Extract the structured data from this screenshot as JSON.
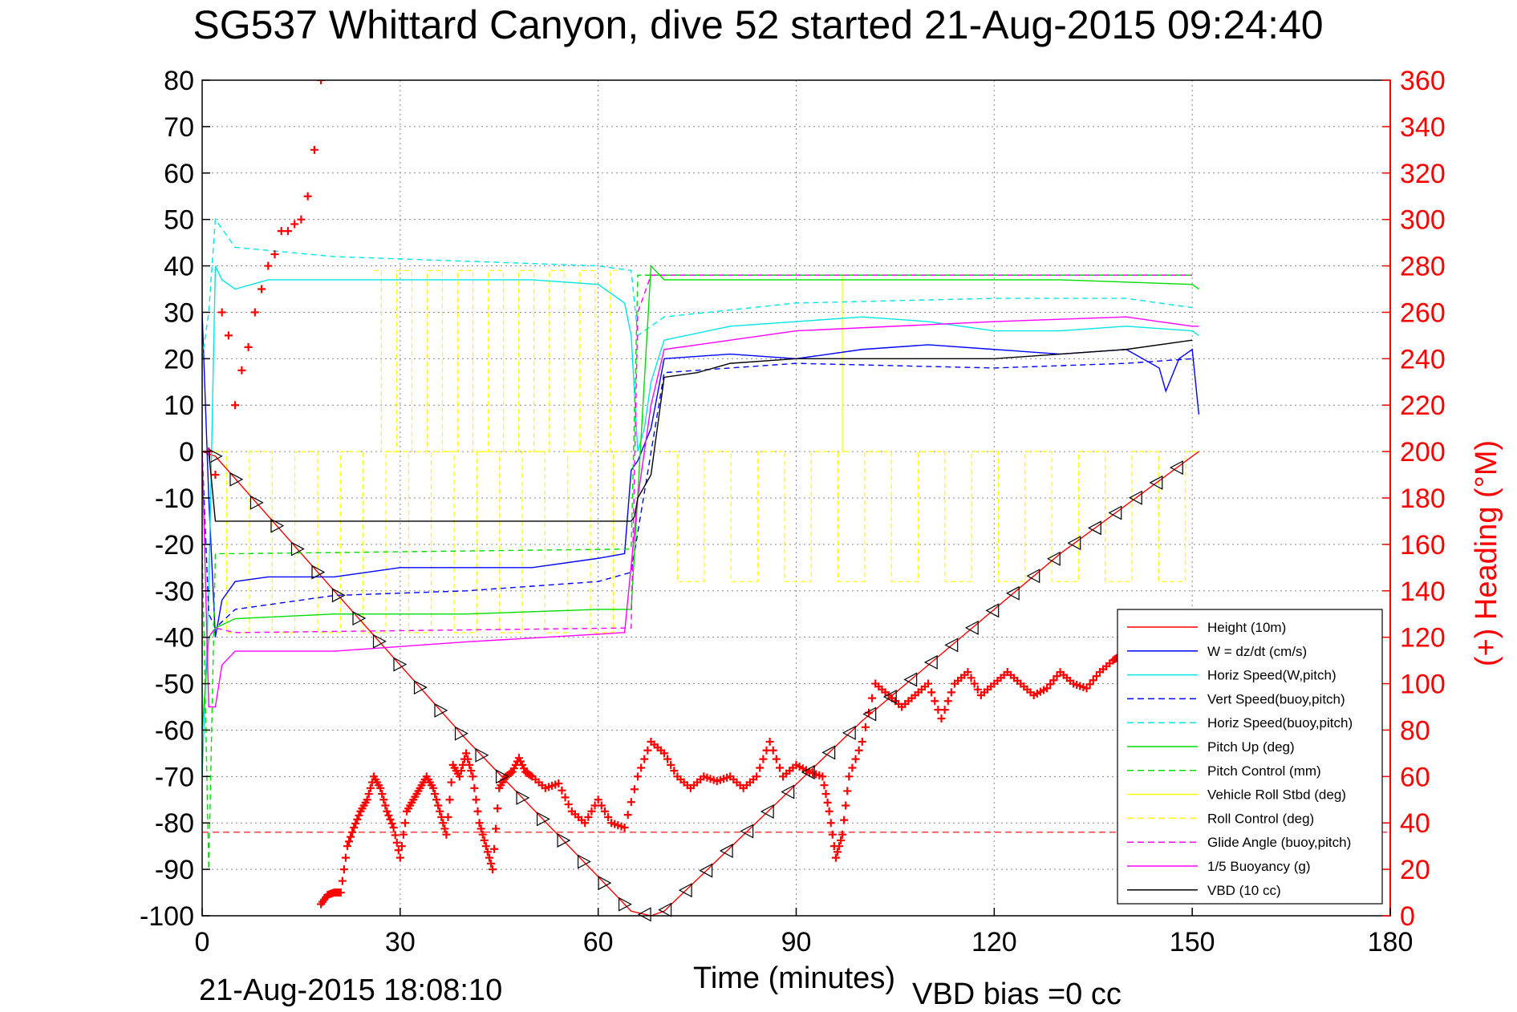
{
  "chart_data": {
    "type": "line",
    "title": "SG537 Whittard Canyon, dive 52 started 21-Aug-2015 09:24:40",
    "xlabel": "Time (minutes)",
    "ylabel_right": "(+) Heading (°M)",
    "footer_left": "21-Aug-2015 18:08:10",
    "footer_right": "VBD bias =0 cc",
    "xlim": [
      0,
      180
    ],
    "ylim_left": [
      -100,
      80
    ],
    "ylim_right": [
      0,
      360
    ],
    "x_ticks": [
      "0",
      "30",
      "60",
      "90",
      "120",
      "150",
      "180"
    ],
    "y_ticks_left": [
      "80",
      "70",
      "60",
      "50",
      "40",
      "30",
      "20",
      "10",
      "0",
      "-10",
      "-20",
      "-30",
      "-40",
      "-50",
      "-60",
      "-70",
      "-80",
      "-90",
      "-100"
    ],
    "y_ticks_right": [
      "360",
      "340",
      "320",
      "300",
      "280",
      "260",
      "240",
      "220",
      "200",
      "180",
      "160",
      "140",
      "120",
      "100",
      "80",
      "60",
      "40",
      "20",
      "0"
    ],
    "grid": true,
    "legend_position": "lower-right",
    "series": [
      {
        "name": "Height (10m)",
        "color": "#ff0000",
        "style": "solid",
        "x": [
          0,
          2,
          20,
          40,
          65,
          68,
          70,
          100,
          130,
          151
        ],
        "y": [
          0,
          -1,
          -30,
          -62,
          -99,
          -100,
          -99,
          -58,
          -22,
          0
        ]
      },
      {
        "name": "W = dz/dt (cm/s)",
        "color": "#0000ff",
        "style": "solid",
        "x": [
          0,
          1,
          2,
          3,
          5,
          10,
          20,
          30,
          40,
          50,
          60,
          64,
          65,
          66,
          68,
          70,
          80,
          90,
          100,
          110,
          120,
          130,
          140,
          145,
          146,
          148,
          150,
          151
        ],
        "y": [
          30,
          -10,
          -40,
          -32,
          -28,
          -27,
          -27,
          -25,
          -25,
          -25,
          -23,
          -22,
          -4,
          -2,
          5,
          20,
          21,
          20,
          22,
          23,
          22,
          21,
          22,
          18,
          13,
          20,
          22,
          8
        ]
      },
      {
        "name": "Horiz Speed(W,pitch)",
        "color": "#00e5e5",
        "style": "solid",
        "x": [
          0,
          1,
          2,
          3,
          5,
          10,
          20,
          30,
          40,
          50,
          60,
          64,
          65,
          66,
          67,
          68,
          70,
          80,
          90,
          100,
          110,
          120,
          130,
          140,
          150,
          151
        ],
        "y": [
          -70,
          -30,
          40,
          37,
          35,
          37,
          37,
          37,
          37,
          37,
          36,
          32,
          25,
          0,
          5,
          15,
          24,
          27,
          28,
          29,
          28,
          26,
          26,
          27,
          26,
          25
        ]
      },
      {
        "name": "Vert Speed(buoy,pitch)",
        "color": "#0000ff",
        "style": "dashed",
        "x": [
          0,
          1,
          2,
          5,
          20,
          40,
          60,
          65,
          70,
          90,
          120,
          140,
          150
        ],
        "y": [
          0,
          -35,
          -38,
          -34,
          -31,
          -30,
          -28,
          -26,
          17,
          19,
          18,
          19,
          20
        ]
      },
      {
        "name": "Horiz Speed(buoy,pitch)",
        "color": "#00e5e5",
        "style": "dashed",
        "x": [
          0,
          1,
          2,
          5,
          20,
          40,
          60,
          65,
          66,
          70,
          90,
          120,
          140,
          150
        ],
        "y": [
          20,
          30,
          50,
          44,
          42,
          41,
          40,
          39,
          25,
          29,
          32,
          33,
          33,
          31
        ]
      },
      {
        "name": "Pitch Up (deg)",
        "color": "#00dd00",
        "style": "solid",
        "x": [
          0,
          1,
          2,
          5,
          20,
          40,
          60,
          65,
          68,
          70,
          100,
          130,
          150,
          151
        ],
        "y": [
          -60,
          -40,
          -38,
          -36,
          -35,
          -35,
          -34,
          -34,
          40,
          37,
          37,
          37,
          36,
          35
        ]
      },
      {
        "name": "Pitch Control (mm)",
        "color": "#00dd00",
        "style": "dashed",
        "x": [
          0,
          1,
          2,
          5,
          65,
          66,
          70,
          150
        ],
        "y": [
          -20,
          -90,
          -22,
          -22,
          -21,
          38,
          38,
          38
        ]
      },
      {
        "name": "Vehicle Roll Stbd (deg)",
        "color": "#ffff00",
        "style": "solid",
        "x": [
          0,
          151
        ],
        "y": [
          0,
          0
        ]
      },
      {
        "name": "Roll Control (deg)",
        "color": "#ffff00",
        "style": "dashed",
        "x": [
          0,
          151
        ],
        "y": [
          0,
          0
        ]
      },
      {
        "name": "Glide Angle (buoy,pitch)",
        "color": "#ff00ff",
        "style": "dashed",
        "x": [
          0,
          1,
          2,
          5,
          65,
          66,
          68,
          70,
          150
        ],
        "y": [
          -40,
          -40,
          -38,
          -39,
          -38,
          30,
          38,
          38,
          38
        ]
      },
      {
        "name": "1/5 Buoyancy (g)",
        "color": "#ff00ff",
        "style": "solid",
        "x": [
          0,
          1,
          2,
          3,
          5,
          20,
          40,
          64,
          66,
          68,
          70,
          90,
          120,
          140,
          145,
          150,
          151
        ],
        "y": [
          0,
          -55,
          -55,
          -46,
          -43,
          -43,
          -41,
          -39,
          -10,
          10,
          22,
          26,
          28,
          29,
          28,
          27,
          27
        ]
      },
      {
        "name": "VBD (10 cc)",
        "color": "#000000",
        "style": "solid",
        "x": [
          0,
          1,
          2,
          65,
          65.5,
          66,
          68,
          70,
          75,
          80,
          90,
          100,
          110,
          120,
          140,
          150
        ],
        "y": [
          0,
          0,
          -15,
          -15,
          -14,
          -10,
          -5,
          16,
          17,
          19,
          20,
          20,
          20,
          20,
          22,
          24
        ]
      }
    ],
    "heading_series": {
      "name": "(+) Heading (°M)",
      "color": "#ff0000",
      "marker": "+",
      "axis": "right",
      "x": [
        18,
        19,
        20,
        21,
        22,
        23,
        24,
        25,
        26,
        27,
        28,
        29,
        30,
        31,
        32,
        33,
        34,
        35,
        36,
        37,
        38,
        39,
        40,
        41,
        42,
        43,
        44,
        45,
        46,
        47,
        48,
        49,
        50,
        52,
        54,
        56,
        58,
        60,
        62,
        64,
        66,
        68,
        70,
        72,
        74,
        76,
        78,
        80,
        82,
        84,
        86,
        88,
        90,
        92,
        94,
        95,
        96,
        97,
        98,
        100,
        102,
        104,
        106,
        108,
        110,
        112,
        114,
        116,
        118,
        120,
        122,
        124,
        126,
        128,
        130,
        132,
        134,
        136,
        138,
        139
      ],
      "y": [
        5,
        9,
        10,
        10,
        30,
        38,
        45,
        50,
        60,
        55,
        45,
        38,
        25,
        45,
        50,
        55,
        60,
        55,
        45,
        35,
        65,
        60,
        70,
        60,
        40,
        30,
        20,
        55,
        60,
        62,
        68,
        62,
        60,
        55,
        57,
        45,
        40,
        50,
        40,
        38,
        60,
        75,
        70,
        60,
        55,
        60,
        58,
        60,
        55,
        60,
        75,
        60,
        65,
        62,
        60,
        45,
        25,
        35,
        60,
        75,
        100,
        95,
        90,
        95,
        100,
        85,
        100,
        105,
        95,
        100,
        105,
        100,
        95,
        98,
        105,
        100,
        98,
        105,
        110,
        112
      ],
      "x_early": [
        1,
        2,
        3,
        4,
        5,
        6,
        7,
        8,
        9,
        10,
        11,
        12,
        13,
        14,
        15,
        16,
        17,
        18
      ],
      "y_early": [
        200,
        190,
        260,
        250,
        220,
        235,
        245,
        260,
        270,
        280,
        285,
        295,
        295,
        298,
        300,
        310,
        330,
        360
      ]
    },
    "reference_line": {
      "y": -82,
      "color": "#ff0000",
      "style": "dashed"
    },
    "legend": [
      {
        "label": "Height (10m)",
        "color": "#ff0000",
        "style": "solid"
      },
      {
        "label": "W = dz/dt (cm/s)",
        "color": "#0000ff",
        "style": "solid"
      },
      {
        "label": "Horiz Speed(W,pitch)",
        "color": "#00e5e5",
        "style": "solid"
      },
      {
        "label": "Vert Speed(buoy,pitch)",
        "color": "#0000ff",
        "style": "dashed"
      },
      {
        "label": "Horiz Speed(buoy,pitch)",
        "color": "#00e5e5",
        "style": "dashed"
      },
      {
        "label": "Pitch Up (deg)",
        "color": "#00dd00",
        "style": "solid"
      },
      {
        "label": "Pitch Control (mm)",
        "color": "#00dd00",
        "style": "dashed"
      },
      {
        "label": "Vehicle Roll Stbd (deg)",
        "color": "#ffff00",
        "style": "solid"
      },
      {
        "label": "Roll Control (deg)",
        "color": "#ffff00",
        "style": "dashed"
      },
      {
        "label": "Glide Angle (buoy,pitch)",
        "color": "#ff00ff",
        "style": "dashed"
      },
      {
        "label": "1/5 Buoyancy (g)",
        "color": "#ff00ff",
        "style": "solid"
      },
      {
        "label": "VBD (10 cc)",
        "color": "#000000",
        "style": "solid"
      }
    ],
    "colors": {
      "left_axis": "#000000",
      "right_axis": "#ff0000",
      "grid": "#888888"
    }
  }
}
